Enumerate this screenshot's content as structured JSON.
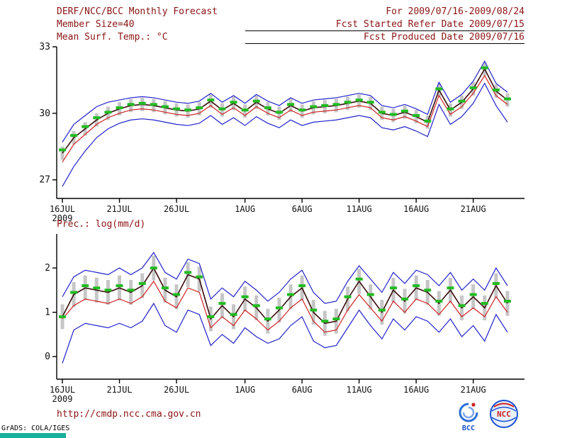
{
  "header": {
    "title": "DERF/NCC/BCC Monthly Forecast",
    "member_size": "Member Size=40",
    "forecast_range": "For 2009/07/16-2009/08/24",
    "refer_date": "Fcst Started Refer Date 2009/07/15",
    "produced_date": "Fcst Produced Date 2009/07/16"
  },
  "footer": {
    "url": "http://cmdp.ncc.cma.gov.cn",
    "grads_credit": "GrADS: COLA/IGES",
    "bcc_logo_text": "BCC",
    "ncc_logo_text": "NCC"
  },
  "colors": {
    "header_text": "#8b1414",
    "axis": "#000000",
    "ens_max_min": "#2222cc",
    "control": "#cc2222",
    "ensemble_mean": "#3a0d0d",
    "observation": "#22bb22",
    "spread_bar": "#c6c6c6",
    "grads_bar": "#17b09c"
  },
  "chart_data": [
    {
      "type": "line",
      "title": "Mean Surf. Temp.: °C",
      "ylabel": "°C",
      "ylim": [
        26.16,
        33.0
      ],
      "yticks": [
        27,
        30,
        33
      ],
      "x_tick_days": [
        0,
        5,
        10,
        16,
        21,
        26,
        31,
        36
      ],
      "x_tick_labels": [
        "16JUL",
        "21JUL",
        "26JUL",
        "1AUG",
        "6AUG",
        "11AUG",
        "16AUG",
        "21AUG"
      ],
      "x_sub_label": "2009",
      "n_days": 40,
      "grid": false,
      "legend": false,
      "spread_half_width": 0.3,
      "series": [
        {
          "name": "ensemble_max",
          "color_key": "ens_max_min",
          "style": "line",
          "values": [
            28.7,
            29.5,
            29.9,
            30.3,
            30.5,
            30.6,
            30.7,
            30.75,
            30.7,
            30.6,
            30.5,
            30.45,
            30.55,
            30.9,
            30.5,
            30.8,
            30.45,
            30.85,
            30.55,
            30.35,
            30.7,
            30.45,
            30.6,
            30.65,
            30.7,
            30.8,
            30.9,
            30.8,
            30.35,
            30.25,
            30.4,
            30.2,
            29.95,
            31.4,
            30.5,
            30.85,
            31.45,
            32.35,
            31.35,
            30.95
          ]
        },
        {
          "name": "ensemble_min",
          "color_key": "ens_max_min",
          "style": "line",
          "values": [
            26.7,
            27.6,
            28.3,
            28.9,
            29.3,
            29.55,
            29.7,
            29.75,
            29.7,
            29.6,
            29.5,
            29.45,
            29.55,
            29.9,
            29.5,
            29.8,
            29.45,
            29.85,
            29.55,
            29.35,
            29.7,
            29.45,
            29.6,
            29.65,
            29.7,
            29.8,
            29.9,
            29.8,
            29.35,
            29.25,
            29.4,
            29.2,
            28.95,
            30.4,
            29.5,
            29.85,
            30.45,
            31.35,
            30.35,
            29.6
          ]
        },
        {
          "name": "control_run",
          "color_key": "control",
          "style": "line",
          "values": [
            27.8,
            28.6,
            29.05,
            29.5,
            29.8,
            30.0,
            30.15,
            30.2,
            30.15,
            30.05,
            29.95,
            29.9,
            30.0,
            30.35,
            29.95,
            30.25,
            29.9,
            30.3,
            30.0,
            29.8,
            30.15,
            29.9,
            30.05,
            30.1,
            30.15,
            30.25,
            30.35,
            30.25,
            29.8,
            29.7,
            29.85,
            29.65,
            29.4,
            30.8,
            29.95,
            30.3,
            30.9,
            31.7,
            30.8,
            30.4
          ]
        },
        {
          "name": "ensemble_mean",
          "color_key": "ensemble_mean",
          "style": "line",
          "values": [
            28.2,
            28.9,
            29.3,
            29.7,
            30.0,
            30.2,
            30.35,
            30.4,
            30.35,
            30.25,
            30.15,
            30.1,
            30.2,
            30.55,
            30.15,
            30.45,
            30.1,
            30.5,
            30.2,
            30.0,
            30.35,
            30.1,
            30.25,
            30.3,
            30.35,
            30.45,
            30.55,
            30.45,
            30.0,
            29.9,
            30.05,
            29.85,
            29.6,
            31.05,
            30.15,
            30.5,
            31.1,
            32.0,
            31.0,
            30.6
          ]
        },
        {
          "name": "observation_estimate",
          "color_key": "observation",
          "style": "dashes",
          "values": [
            28.35,
            29.0,
            29.4,
            29.8,
            30.05,
            30.25,
            30.4,
            30.45,
            30.4,
            30.3,
            30.2,
            30.15,
            30.25,
            30.6,
            30.2,
            30.5,
            30.15,
            30.55,
            30.25,
            30.05,
            30.4,
            30.15,
            30.3,
            30.35,
            30.4,
            30.5,
            30.6,
            30.5,
            30.05,
            29.95,
            30.1,
            29.9,
            29.65,
            31.1,
            30.2,
            30.55,
            31.15,
            32.05,
            31.05,
            30.65
          ]
        }
      ]
    },
    {
      "type": "line",
      "title": "Prec.: log(mm/d)",
      "ylabel": "log(mm/d)",
      "ylim": [
        -0.51,
        2.77
      ],
      "yticks": [
        0,
        1,
        2
      ],
      "x_tick_days": [
        0,
        5,
        10,
        16,
        21,
        26,
        31,
        36
      ],
      "x_tick_labels": [
        "16JUL",
        "21JUL",
        "26JUL",
        "1AUG",
        "6AUG",
        "11AUG",
        "16AUG",
        "21AUG"
      ],
      "x_sub_label": "2009",
      "n_days": 40,
      "grid": false,
      "legend": false,
      "spread_half_width": 0.28,
      "series": [
        {
          "name": "ensemble_max",
          "color_key": "ens_max_min",
          "style": "line",
          "values": [
            1.35,
            1.8,
            1.95,
            1.9,
            1.85,
            2.0,
            1.85,
            2.0,
            2.35,
            1.9,
            1.75,
            2.2,
            2.1,
            1.3,
            1.55,
            1.35,
            1.7,
            1.5,
            1.25,
            1.45,
            1.75,
            1.95,
            1.45,
            1.2,
            1.25,
            1.7,
            2.05,
            1.75,
            1.45,
            1.9,
            1.65,
            1.95,
            1.85,
            1.6,
            1.9,
            1.5,
            1.75,
            1.5,
            2.0,
            1.6
          ]
        },
        {
          "name": "ensemble_min",
          "color_key": "ens_max_min",
          "style": "line",
          "values": [
            -0.15,
            0.6,
            0.75,
            0.7,
            0.65,
            0.75,
            0.65,
            0.8,
            1.2,
            0.7,
            0.55,
            1.05,
            0.95,
            0.25,
            0.5,
            0.3,
            0.65,
            0.45,
            0.3,
            0.4,
            0.7,
            0.9,
            0.35,
            0.2,
            0.25,
            0.65,
            1.05,
            0.7,
            0.4,
            0.85,
            0.6,
            0.9,
            0.8,
            0.55,
            0.85,
            0.45,
            0.7,
            0.35,
            0.95,
            0.55
          ]
        },
        {
          "name": "control_run",
          "color_key": "control",
          "style": "line",
          "values": [
            0.85,
            1.15,
            1.3,
            1.25,
            1.2,
            1.3,
            1.2,
            1.35,
            1.7,
            1.25,
            1.1,
            1.55,
            1.45,
            0.65,
            0.9,
            0.7,
            1.05,
            0.85,
            0.6,
            0.8,
            1.1,
            1.3,
            0.8,
            0.55,
            0.6,
            1.05,
            1.4,
            1.1,
            0.8,
            1.25,
            1.0,
            1.3,
            1.2,
            0.95,
            1.25,
            0.9,
            1.1,
            0.9,
            1.35,
            1.0
          ]
        },
        {
          "name": "ensemble_mean",
          "color_key": "ensemble_mean",
          "style": "line",
          "values": [
            0.9,
            1.4,
            1.55,
            1.5,
            1.45,
            1.55,
            1.45,
            1.6,
            2.0,
            1.5,
            1.35,
            1.85,
            1.75,
            0.85,
            1.15,
            0.9,
            1.3,
            1.1,
            0.8,
            1.05,
            1.35,
            1.55,
            1.0,
            0.75,
            0.8,
            1.3,
            1.7,
            1.35,
            1.0,
            1.5,
            1.25,
            1.55,
            1.45,
            1.2,
            1.5,
            1.1,
            1.35,
            1.1,
            1.6,
            1.2
          ]
        },
        {
          "name": "observation_estimate",
          "color_key": "observation",
          "style": "dashes",
          "values": [
            0.9,
            1.45,
            1.6,
            1.55,
            1.5,
            1.6,
            1.5,
            1.65,
            2.0,
            1.55,
            1.4,
            1.9,
            1.8,
            0.9,
            1.2,
            0.95,
            1.35,
            1.15,
            0.85,
            1.1,
            1.4,
            1.6,
            1.05,
            0.8,
            0.85,
            1.35,
            1.75,
            1.4,
            1.05,
            1.55,
            1.3,
            1.6,
            1.5,
            1.25,
            1.55,
            1.15,
            1.4,
            1.2,
            1.65,
            1.25
          ]
        }
      ]
    }
  ]
}
